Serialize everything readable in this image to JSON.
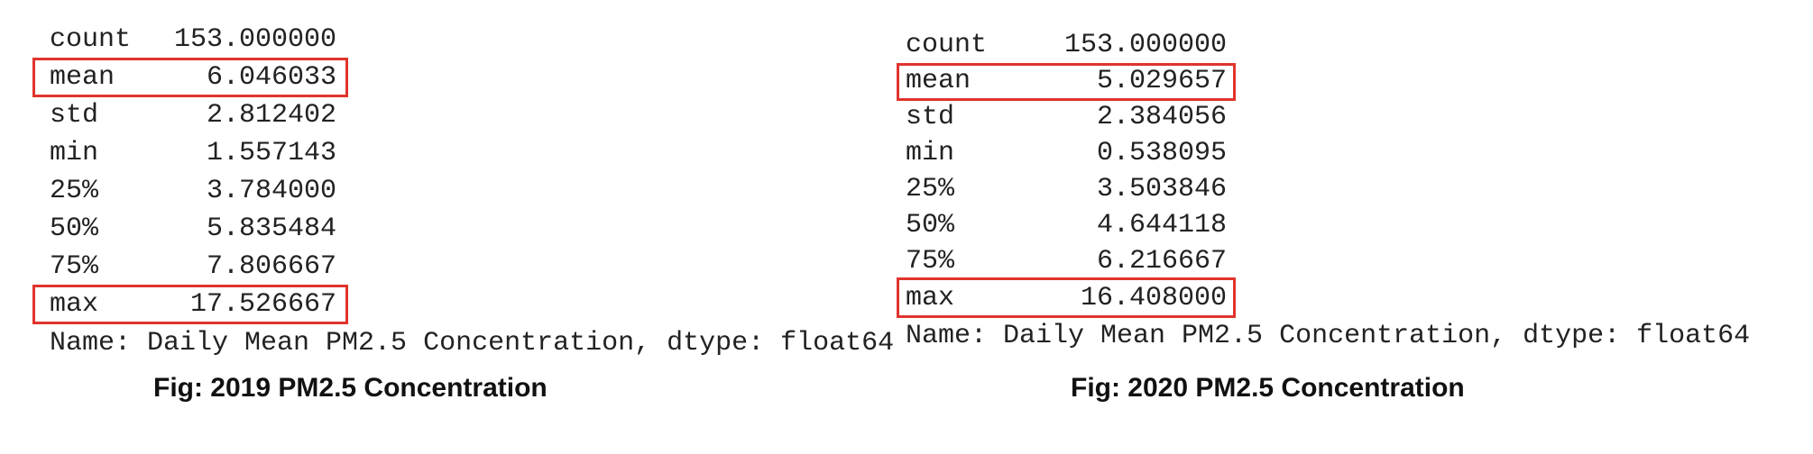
{
  "panels": [
    {
      "rows": [
        {
          "key": "count",
          "value": "153.000000"
        },
        {
          "key": "mean",
          "value": "6.046033"
        },
        {
          "key": "std",
          "value": "2.812402"
        },
        {
          "key": "min",
          "value": "1.557143"
        },
        {
          "key": "25%",
          "value": "3.784000"
        },
        {
          "key": "50%",
          "value": "5.835484"
        },
        {
          "key": "75%",
          "value": "7.806667"
        },
        {
          "key": "max",
          "value": "17.526667"
        }
      ],
      "footer": "Name: Daily Mean PM2.5 Concentration, dtype: float64",
      "caption": "Fig: 2019 PM2.5 Concentration"
    },
    {
      "rows": [
        {
          "key": "count",
          "value": "153.000000"
        },
        {
          "key": "mean",
          "value": "5.029657"
        },
        {
          "key": "std",
          "value": "2.384056"
        },
        {
          "key": "min",
          "value": "0.538095"
        },
        {
          "key": "25%",
          "value": "3.503846"
        },
        {
          "key": "50%",
          "value": "4.644118"
        },
        {
          "key": "75%",
          "value": "6.216667"
        },
        {
          "key": "max",
          "value": "16.408000"
        }
      ],
      "footer": "Name: Daily Mean PM2.5 Concentration, dtype: float64",
      "caption": "Fig: 2020 PM2.5 Concentration"
    }
  ],
  "colors": {
    "highlight": "#e0342c",
    "text": "#222222",
    "background": "#ffffff"
  }
}
